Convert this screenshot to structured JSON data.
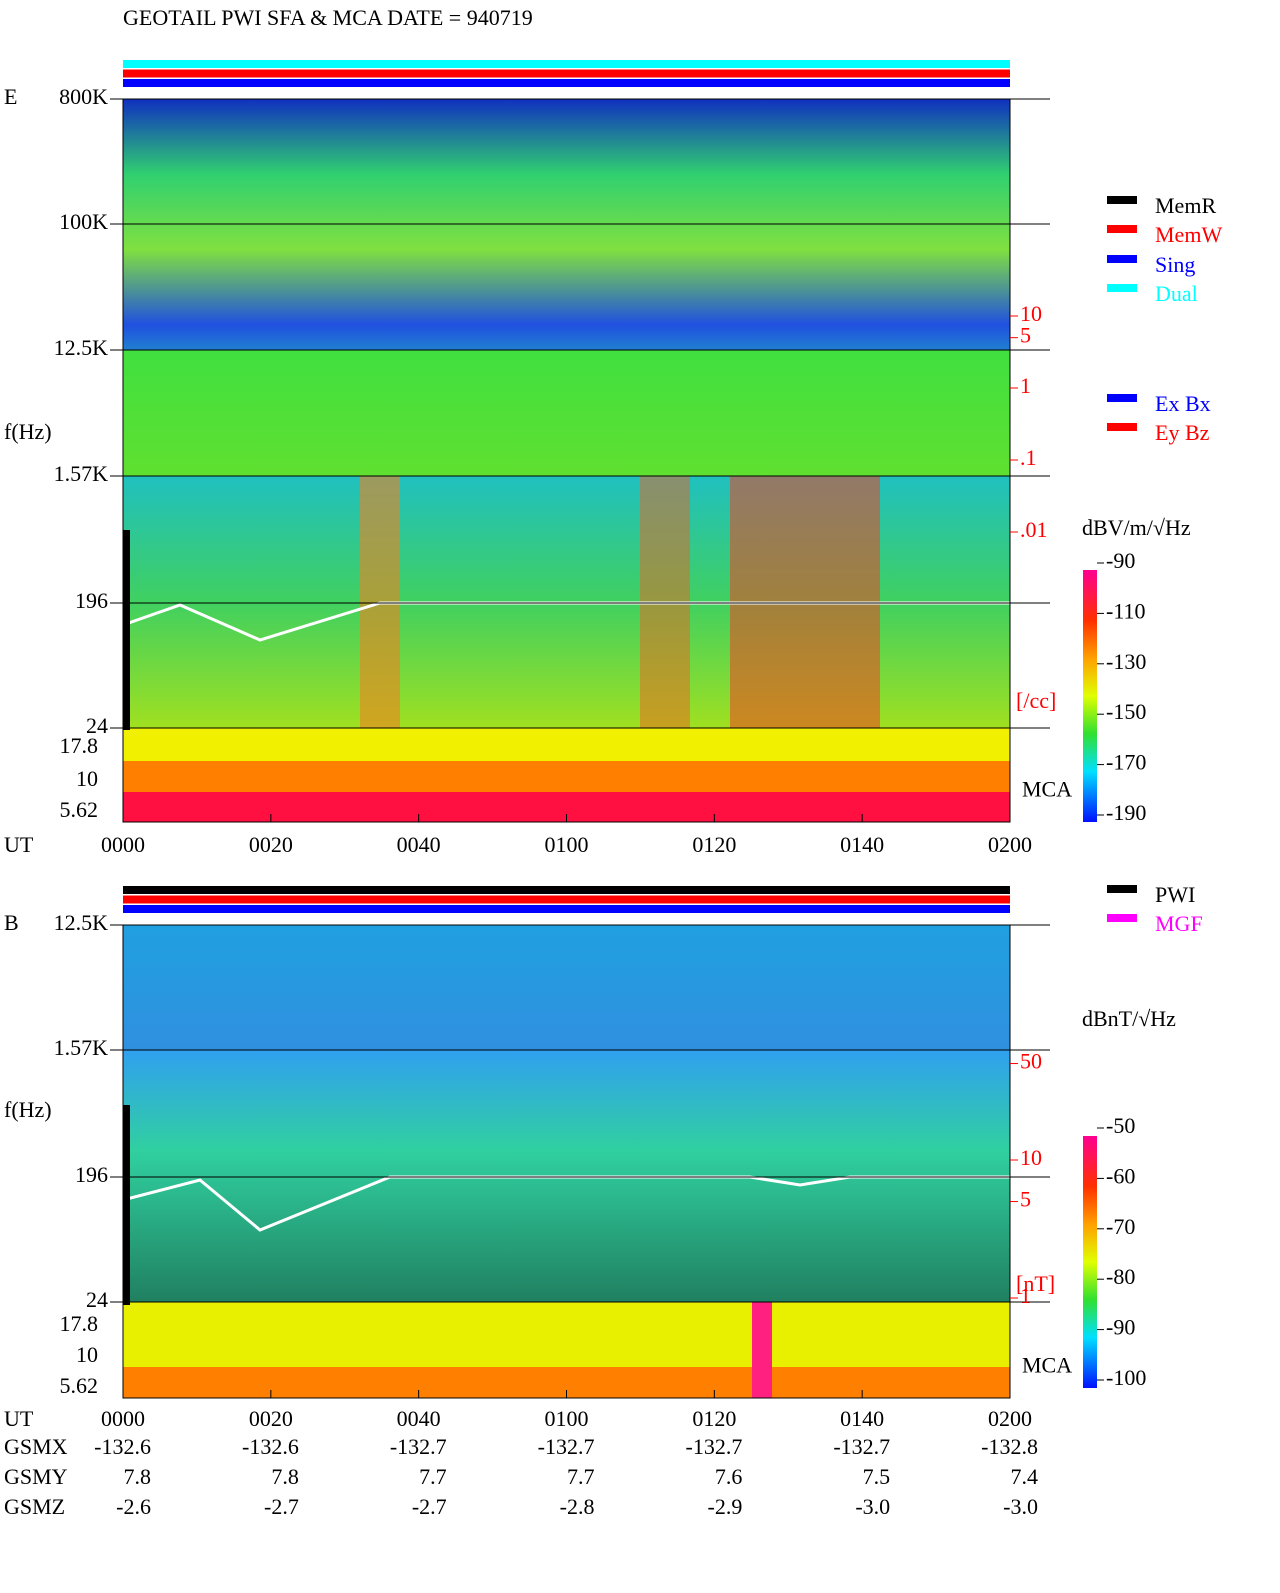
{
  "title": "GEOTAIL  PWI SFA & MCA   DATE = 940719",
  "panels": [
    {
      "label": "E",
      "y_axis_label": "f(Hz)",
      "freq_ticks": [
        "800K",
        "100K",
        "12.5K",
        "1.57K",
        "196",
        "24"
      ],
      "mca_ticks": [
        "17.8",
        "10",
        "5.62"
      ],
      "mca_label": "MCA",
      "density_ticks": [
        10,
        5,
        1,
        {
          "value": 0.1,
          "label": ".1"
        },
        {
          "value": 0.01,
          "label": ".01"
        }
      ],
      "density_unit": "[/cc]",
      "x_axis_label": "UT",
      "time_ticks": [
        "0000",
        "0020",
        "0040",
        "0100",
        "0120",
        "0140",
        "0200"
      ],
      "status_colors": [
        "#00ffff",
        "#ff0000",
        "#0000ff"
      ],
      "legends": [
        [
          {
            "label": "MemR",
            "color": "#000000"
          },
          {
            "label": "MemW",
            "color": "#ff0000"
          },
          {
            "label": "Sing",
            "color": "#0000ff"
          },
          {
            "label": "Dual",
            "color": "#00ffff"
          }
        ],
        [
          {
            "label": "Ex Bx",
            "color": "#0000ff"
          },
          {
            "label": "Ey Bz",
            "color": "#ff0000"
          }
        ]
      ],
      "colorbar_unit": "dBV/m/√Hz",
      "colorbar_ticks": [
        -90,
        -110,
        -130,
        -150,
        -170,
        -190
      ]
    },
    {
      "label": "B",
      "y_axis_label": "f(Hz)",
      "freq_ticks": [
        "12.5K",
        "1.57K",
        "196",
        "24"
      ],
      "mca_ticks": [
        "17.8",
        "10",
        "5.62"
      ],
      "mca_label": "MCA",
      "density_ticks": [
        50,
        10,
        5,
        1
      ],
      "density_unit": "[nT]",
      "x_axis_label": "UT",
      "time_ticks": [
        "0000",
        "0020",
        "0040",
        "0100",
        "0120",
        "0140",
        "0200"
      ],
      "status_colors": [
        "#000000",
        "#ff0000",
        "#0000ff"
      ],
      "legends": [
        [
          {
            "label": "PWI",
            "color": "#000000"
          },
          {
            "label": "MGF",
            "color": "#ff00ff"
          }
        ]
      ],
      "colorbar_unit": "dBnT/√Hz",
      "colorbar_ticks": [
        -50,
        -60,
        -70,
        -80,
        -90,
        -100
      ]
    }
  ],
  "orbit": [
    {
      "name": "GSMX",
      "values": [
        "-132.6",
        "-132.6",
        "-132.7",
        "-132.7",
        "-132.7",
        "-132.7",
        "-132.8"
      ]
    },
    {
      "name": "GSMY",
      "values": [
        "7.8",
        "7.8",
        "7.7",
        "7.7",
        "7.6",
        "7.5",
        "7.4"
      ]
    },
    {
      "name": "GSMZ",
      "values": [
        "-2.6",
        "-2.7",
        "-2.7",
        "-2.8",
        "-2.9",
        "-3.0",
        "-3.0"
      ]
    }
  ]
}
